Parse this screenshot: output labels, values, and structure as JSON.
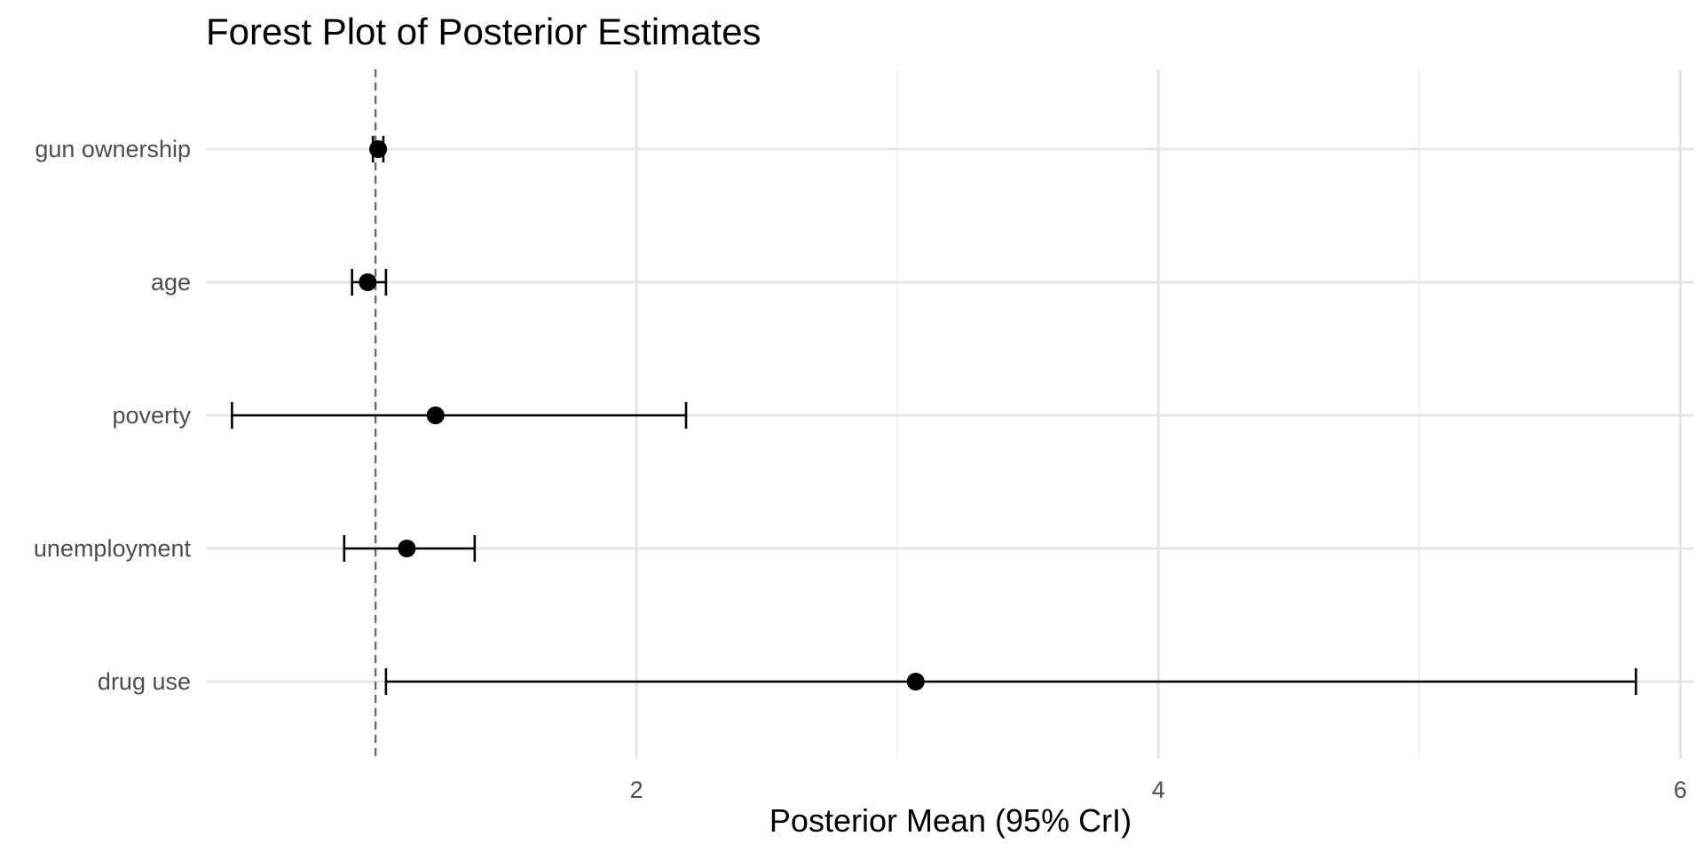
{
  "chart_data": {
    "type": "forest",
    "title": "Forest Plot of Posterior Estimates",
    "xlabel": "Posterior Mean (95% CrI)",
    "ylabel": "",
    "xlim": [
      0.35,
      6.05
    ],
    "xticks": [
      2,
      4,
      6
    ],
    "x_minor_ticks": [
      1,
      3,
      5
    ],
    "reference_line": 1,
    "grid": true,
    "categories": [
      "gun ownership",
      "age",
      "poverty",
      "unemployment",
      "drug use"
    ],
    "estimates": [
      {
        "label": "gun ownership",
        "mean": 1.01,
        "lower": 0.99,
        "upper": 1.03
      },
      {
        "label": "age",
        "mean": 0.97,
        "lower": 0.91,
        "upper": 1.04
      },
      {
        "label": "poverty",
        "mean": 1.23,
        "lower": 0.45,
        "upper": 2.19
      },
      {
        "label": "unemployment",
        "mean": 1.12,
        "lower": 0.88,
        "upper": 1.38
      },
      {
        "label": "drug use",
        "mean": 3.07,
        "lower": 1.04,
        "upper": 5.83
      }
    ]
  }
}
